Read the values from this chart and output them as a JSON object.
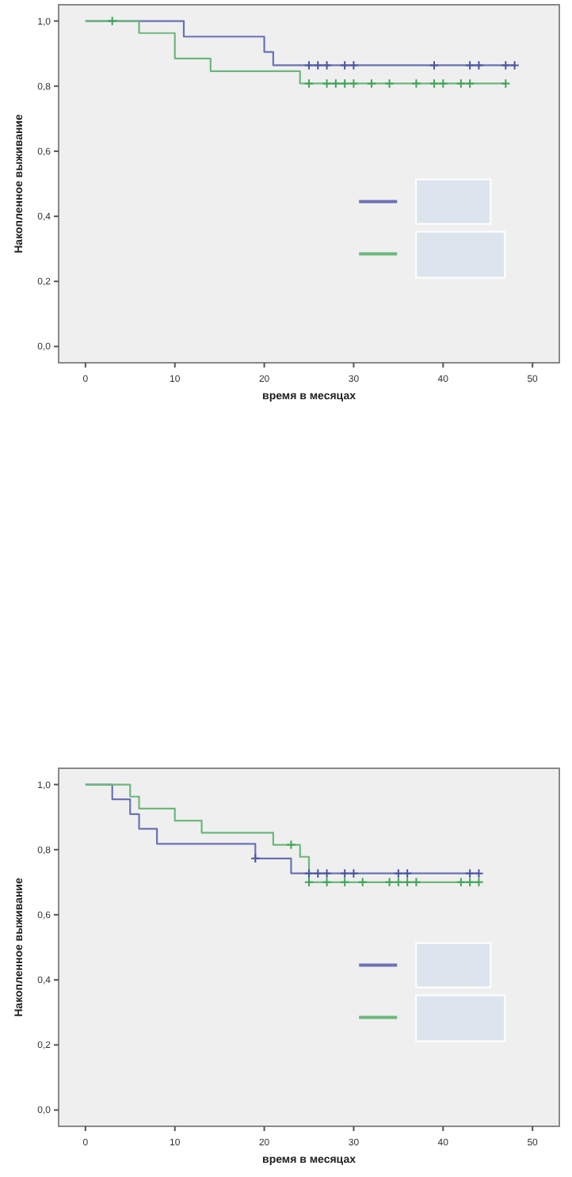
{
  "chart_data": [
    {
      "type": "step",
      "xlabel": "время в месяцах",
      "ylabel": "Накопленное выживание",
      "xlim": [
        -3,
        53
      ],
      "ylim": [
        -0.05,
        1.05
      ],
      "xticks": [
        0,
        10,
        20,
        30,
        40,
        50
      ],
      "yticks": [
        {
          "value": 0,
          "label": "0,0"
        },
        {
          "value": 0.2,
          "label": "0,2"
        },
        {
          "value": 0.4,
          "label": "0,4"
        },
        {
          "value": 0.6,
          "label": "0,6"
        },
        {
          "value": 0.8,
          "label": "0,8"
        },
        {
          "value": 1,
          "label": "1,0"
        }
      ],
      "grid": false,
      "series": [
        {
          "type": "step",
          "color": "#6a72b4",
          "x": [
            0,
            11,
            20,
            21,
            48
          ],
          "values": [
            1,
            0.952,
            0.905,
            0.864,
            0.864
          ]
        },
        {
          "type": "step",
          "color": "#6cb87c",
          "x": [
            0,
            6,
            10,
            14,
            24,
            47
          ],
          "values": [
            1,
            0.963,
            0.885,
            0.846,
            0.808,
            0.808
          ]
        },
        {
          "type": "scatter",
          "marker": "cross",
          "color": "#4a56a0",
          "x": [
            25,
            26,
            27,
            29,
            30,
            39,
            43,
            44,
            47,
            48
          ],
          "values": [
            0.864,
            0.864,
            0.864,
            0.864,
            0.864,
            0.864,
            0.864,
            0.864,
            0.864,
            0.864
          ]
        },
        {
          "type": "scatter",
          "marker": "cross",
          "color": "#3fa458",
          "x": [
            3,
            25,
            27,
            28,
            29,
            30,
            32,
            34,
            37,
            39,
            40,
            42,
            43,
            47
          ],
          "values": [
            1,
            0.808,
            0.808,
            0.808,
            0.808,
            0.808,
            0.808,
            0.808,
            0.808,
            0.808,
            0.808,
            0.808,
            0.808,
            0.808
          ]
        }
      ]
    },
    {
      "type": "step",
      "xlabel": "время в месяцах",
      "ylabel": "Накопленное выживание",
      "xlim": [
        -3,
        53
      ],
      "ylim": [
        -0.05,
        1.05
      ],
      "xticks": [
        0,
        10,
        20,
        30,
        40,
        50
      ],
      "yticks": [
        {
          "value": 0,
          "label": "0,0"
        },
        {
          "value": 0.2,
          "label": "0,2"
        },
        {
          "value": 0.4,
          "label": "0,4"
        },
        {
          "value": 0.6,
          "label": "0,6"
        },
        {
          "value": 0.8,
          "label": "0,8"
        },
        {
          "value": 1,
          "label": "1,0"
        }
      ],
      "grid": false,
      "series": [
        {
          "type": "step",
          "color": "#6a72b4",
          "x": [
            0,
            3,
            5,
            6,
            8,
            19,
            23,
            44
          ],
          "values": [
            1,
            0.955,
            0.909,
            0.864,
            0.818,
            0.773,
            0.727,
            0.727
          ]
        },
        {
          "type": "step",
          "color": "#6cb87c",
          "x": [
            0,
            5,
            6,
            10,
            13,
            21,
            24,
            25,
            44
          ],
          "values": [
            1,
            0.963,
            0.926,
            0.889,
            0.852,
            0.815,
            0.778,
            0.7,
            0.7
          ]
        },
        {
          "type": "scatter",
          "marker": "cross",
          "color": "#4a56a0",
          "x": [
            19,
            25,
            26,
            27,
            29,
            30,
            35,
            36,
            43,
            44
          ],
          "values": [
            0.773,
            0.727,
            0.727,
            0.727,
            0.727,
            0.727,
            0.727,
            0.727,
            0.727,
            0.727
          ]
        },
        {
          "type": "scatter",
          "marker": "cross",
          "color": "#3fa458",
          "x": [
            23,
            25,
            27,
            29,
            31,
            34,
            35,
            36,
            37,
            42,
            43,
            44
          ],
          "values": [
            0.815,
            0.7,
            0.7,
            0.7,
            0.7,
            0.7,
            0.7,
            0.7,
            0.7,
            0.7,
            0.7,
            0.7
          ]
        }
      ]
    }
  ]
}
